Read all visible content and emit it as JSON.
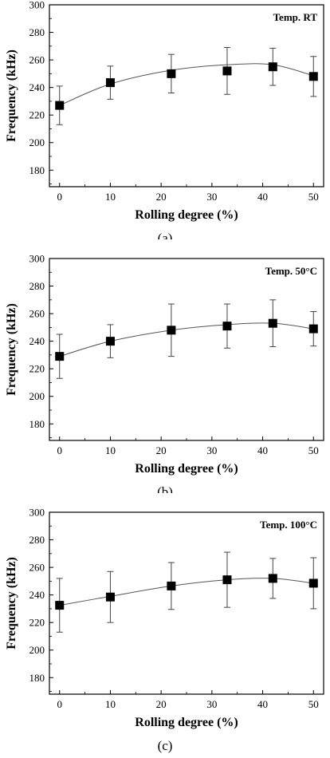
{
  "chart_data": [
    {
      "type": "scatter",
      "panel_label": "(a)",
      "annotation": "Temp. RT",
      "xlabel": "Rolling degree (%)",
      "ylabel": "Frequency (kHz)",
      "xlim": [
        -2,
        52
      ],
      "ylim": [
        168,
        300
      ],
      "xticks": [
        0,
        10,
        20,
        30,
        40,
        50
      ],
      "yticks": [
        180,
        200,
        220,
        240,
        260,
        280,
        300
      ],
      "x": [
        0,
        10,
        22,
        33,
        42,
        50
      ],
      "y": [
        227,
        243.5,
        250,
        252,
        255,
        248
      ],
      "err": [
        14,
        12,
        14,
        17,
        13.5,
        14.5
      ],
      "fit": [
        227,
        242.5,
        252.5,
        256.5,
        256.5,
        248.5
      ],
      "marker": "square",
      "grid": false
    },
    {
      "type": "scatter",
      "panel_label": "(b)",
      "annotation": "Temp. 50°C",
      "xlabel": "Rolling degree (%)",
      "ylabel": "Frequency (kHz)",
      "xlim": [
        -2,
        52
      ],
      "ylim": [
        168,
        300
      ],
      "xticks": [
        0,
        10,
        20,
        30,
        40,
        50
      ],
      "yticks": [
        180,
        200,
        220,
        240,
        260,
        280,
        300
      ],
      "x": [
        0,
        10,
        22,
        33,
        42,
        50
      ],
      "y": [
        229,
        240,
        248,
        251,
        253,
        249
      ],
      "err": [
        16,
        12,
        19,
        16,
        17,
        12.5
      ],
      "fit": [
        229,
        240,
        248,
        252,
        253,
        249
      ],
      "marker": "square",
      "grid": false
    },
    {
      "type": "scatter",
      "panel_label": "(c)",
      "annotation": "Temp. 100°C",
      "xlabel": "Rolling degree (%)",
      "ylabel": "Frequency (kHz)",
      "xlim": [
        -2,
        52
      ],
      "ylim": [
        168,
        300
      ],
      "xticks": [
        0,
        10,
        20,
        30,
        40,
        50
      ],
      "yticks": [
        180,
        200,
        220,
        240,
        260,
        280,
        300
      ],
      "x": [
        0,
        10,
        22,
        33,
        42,
        50
      ],
      "y": [
        232.5,
        238.5,
        246.5,
        251,
        252,
        248.5
      ],
      "err": [
        19.5,
        18.5,
        17,
        20,
        14.5,
        18.5
      ],
      "fit": [
        232.5,
        239,
        246.5,
        251,
        252,
        248.5
      ],
      "marker": "square",
      "grid": false
    }
  ]
}
